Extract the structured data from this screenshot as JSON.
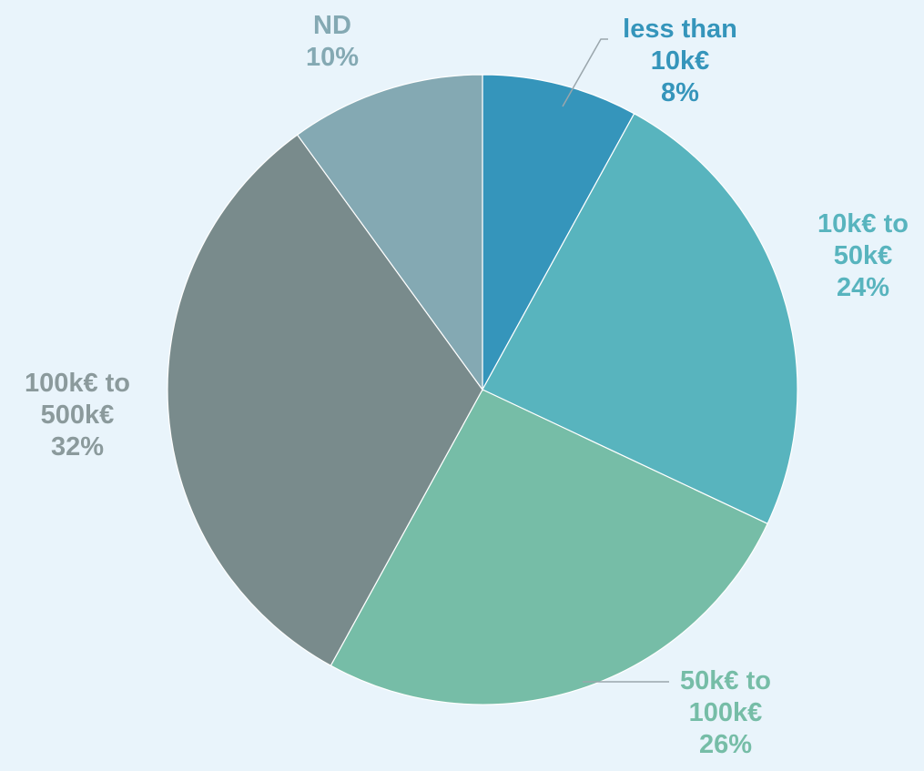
{
  "chart_data": {
    "type": "pie",
    "start_angle_deg": 0,
    "direction": "clockwise",
    "slices": [
      {
        "label_lines": [
          "less than",
          "10k€"
        ],
        "percent_label": "8%",
        "value": 8,
        "color": "#3595bb"
      },
      {
        "label_lines": [
          "10k€ to",
          "50k€"
        ],
        "percent_label": "24%",
        "value": 24,
        "color": "#58b4be"
      },
      {
        "label_lines": [
          "50k€ to",
          "100k€"
        ],
        "percent_label": "26%",
        "value": 26,
        "color": "#76bda7"
      },
      {
        "label_lines": [
          "100k€ to",
          "500k€"
        ],
        "percent_label": "32%",
        "value": 32,
        "color": "#798b8c"
      },
      {
        "label_lines": [
          "ND"
        ],
        "percent_label": "10%",
        "value": 10,
        "color": "#84a9b3"
      }
    ],
    "label_colors": [
      "#3595bb",
      "#58b4be",
      "#76bda7",
      "#8b9a9c",
      "#84a9b3"
    ]
  }
}
